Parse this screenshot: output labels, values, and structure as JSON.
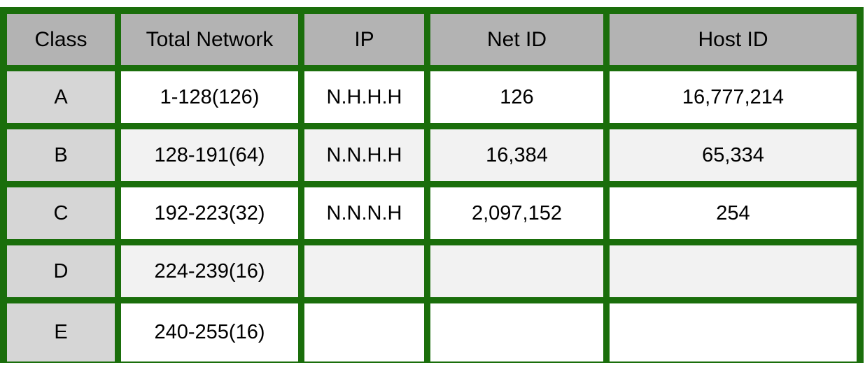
{
  "colors": {
    "border": "#1a6e0b",
    "header_bg": "#b3b3b3",
    "class_col_bg": "#d6d6d6",
    "row_light": "#ffffff",
    "row_shaded": "#f2f2f2"
  },
  "table": {
    "headers": [
      "Class",
      "Total Network",
      "IP",
      "Net ID",
      "Host ID"
    ],
    "rows": [
      [
        "A",
        "1-128(126)",
        "N.H.H.H",
        "126",
        "16,777,214"
      ],
      [
        "B",
        "128-191(64)",
        "N.N.H.H",
        "16,384",
        "65,334"
      ],
      [
        "C",
        "192-223(32)",
        "N.N.N.H",
        "2,097,152",
        "254"
      ],
      [
        "D",
        "224-239(16)",
        "",
        "",
        ""
      ],
      [
        "E",
        "240-255(16)",
        "",
        "",
        ""
      ]
    ]
  }
}
